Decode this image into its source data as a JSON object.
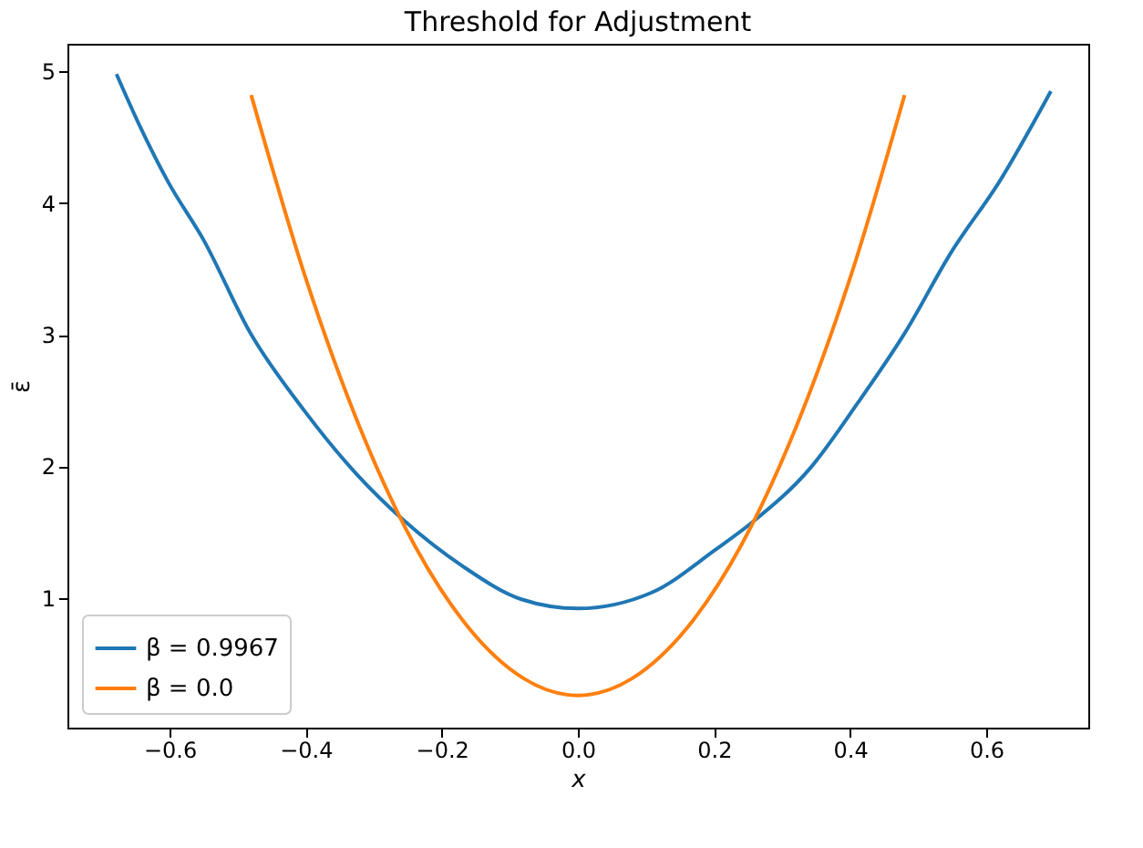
{
  "chart_data": {
    "type": "line",
    "title": "Threshold for Adjustment",
    "xlabel": "x",
    "ylabel": "ε̄",
    "xlim": [
      -0.75,
      0.75
    ],
    "ylim": [
      0.015,
      5.21
    ],
    "xticks": [
      {
        "value": -0.6,
        "label": "−0.6"
      },
      {
        "value": -0.4,
        "label": "−0.4"
      },
      {
        "value": -0.2,
        "label": "−0.2"
      },
      {
        "value": 0,
        "label": "0.0"
      },
      {
        "value": 0.2,
        "label": "0.2"
      },
      {
        "value": 0.4,
        "label": "0.4"
      },
      {
        "value": 0.6,
        "label": "0.6"
      }
    ],
    "yticks": [
      1,
      2,
      3,
      4,
      5
    ],
    "grid": false,
    "legend": "bottom left",
    "marker": "none",
    "line_style": "solid",
    "series": [
      {
        "name": "β = 0.9967",
        "color": "#1f77b4",
        "x": [
          -0.678,
          -0.645,
          -0.602,
          -0.55,
          -0.481,
          -0.403,
          -0.325,
          -0.256,
          -0.169,
          -0.083,
          0,
          0.108,
          0.203,
          0.255,
          0.342,
          0.411,
          0.48,
          0.549,
          0.619,
          0.695
        ],
        "values": [
          4.98,
          4.6,
          4.16,
          3.72,
          3.01,
          2.43,
          1.94,
          1.59,
          1.24,
          0.99,
          0.92,
          1.04,
          1.37,
          1.57,
          1.99,
          2.48,
          3.01,
          3.63,
          4.16,
          4.85
        ]
      },
      {
        "name": "β = 0.0",
        "color": "#ff7f0e",
        "x": [
          -0.48,
          -0.4,
          -0.32,
          -0.24,
          -0.16,
          -0.08,
          0,
          0.08,
          0.16,
          0.24,
          0.32,
          0.4,
          0.48
        ],
        "values": [
          4.82,
          3.43,
          2.29,
          1.4,
          0.77,
          0.39,
          0.26,
          0.39,
          0.77,
          1.4,
          2.29,
          3.43,
          4.82
        ]
      }
    ]
  }
}
